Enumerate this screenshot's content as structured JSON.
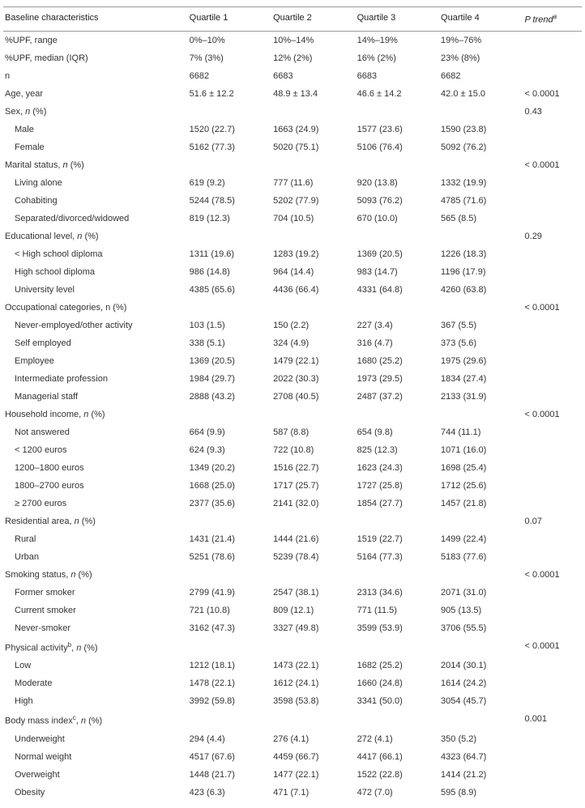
{
  "header": {
    "label": "Baseline characteristics",
    "q1": "Quartile 1",
    "q2": "Quartile 2",
    "q3": "Quartile 3",
    "q4": "Quartile 4",
    "ptrend": "P trend",
    "ptrend_sup": "a"
  },
  "rows": [
    {
      "label": "%UPF, range",
      "q1": "0%–10%",
      "q2": "10%–14%",
      "q3": "14%–19%",
      "q4": "19%–76%",
      "p": "",
      "indent": 0
    },
    {
      "label": "%UPF, median (IQR)",
      "q1": "7% (3%)",
      "q2": "12% (2%)",
      "q3": "16% (2%)",
      "q4": "23% (8%)",
      "p": "",
      "indent": 0
    },
    {
      "label": "n",
      "q1": "6682",
      "q2": "6683",
      "q3": "6683",
      "q4": "6682",
      "p": "",
      "indent": 0
    },
    {
      "label": "Age, year",
      "q1": "51.6 ± 12.2",
      "q2": "48.9 ± 13.4",
      "q3": "46.6 ± 14.2",
      "q4": "42.0 ± 15.0",
      "p": "< 0.0001",
      "indent": 0
    },
    {
      "label": "Sex, n (%)",
      "q1": "",
      "q2": "",
      "q3": "",
      "q4": "",
      "p": "0.43",
      "indent": 0,
      "italicN": true
    },
    {
      "label": "Male",
      "q1": "1520 (22.7)",
      "q2": "1663 (24.9)",
      "q3": "1577 (23.6)",
      "q4": "1590 (23.8)",
      "p": "",
      "indent": 1
    },
    {
      "label": "Female",
      "q1": "5162 (77.3)",
      "q2": "5020 (75.1)",
      "q3": "5106 (76.4)",
      "q4": "5092 (76.2)",
      "p": "",
      "indent": 1
    },
    {
      "label": "Marital status, n (%)",
      "q1": "",
      "q2": "",
      "q3": "",
      "q4": "",
      "p": "< 0.0001",
      "indent": 0,
      "italicN": true
    },
    {
      "label": "Living alone",
      "q1": "619 (9.2)",
      "q2": "777 (11.6)",
      "q3": "920 (13.8)",
      "q4": "1332 (19.9)",
      "p": "",
      "indent": 1
    },
    {
      "label": "Cohabiting",
      "q1": "5244 (78.5)",
      "q2": "5202 (77.9)",
      "q3": "5093 (76.2)",
      "q4": "4785 (71.6)",
      "p": "",
      "indent": 1
    },
    {
      "label": "Separated/divorced/widowed",
      "q1": "819 (12.3)",
      "q2": "704 (10.5)",
      "q3": "670 (10.0)",
      "q4": "565 (8.5)",
      "p": "",
      "indent": 1
    },
    {
      "label": "Educational level, n (%)",
      "q1": "",
      "q2": "",
      "q3": "",
      "q4": "",
      "p": "0.29",
      "indent": 0,
      "italicN": true
    },
    {
      "label": "< High school diploma",
      "q1": "1311 (19.6)",
      "q2": "1283 (19.2)",
      "q3": "1369 (20.5)",
      "q4": "1226 (18.3)",
      "p": "",
      "indent": 1
    },
    {
      "label": "High school diploma",
      "q1": "986 (14.8)",
      "q2": "964 (14.4)",
      "q3": "983 (14.7)",
      "q4": "1196 (17.9)",
      "p": "",
      "indent": 1
    },
    {
      "label": "University level",
      "q1": "4385 (65.6)",
      "q2": "4436 (66.4)",
      "q3": "4331 (64.8)",
      "q4": "4260 (63.8)",
      "p": "",
      "indent": 1
    },
    {
      "label": "Occupational categories, n (%)",
      "q1": "",
      "q2": "",
      "q3": "",
      "q4": "",
      "p": "< 0.0001",
      "indent": 0
    },
    {
      "label": "Never-employed/other activity",
      "q1": "103 (1.5)",
      "q2": "150 (2.2)",
      "q3": "227 (3.4)",
      "q4": "367 (5.5)",
      "p": "",
      "indent": 1
    },
    {
      "label": "Self employed",
      "q1": "338 (5.1)",
      "q2": "324 (4.9)",
      "q3": "316 (4.7)",
      "q4": "373 (5.6)",
      "p": "",
      "indent": 1
    },
    {
      "label": "Employee",
      "q1": "1369 (20.5)",
      "q2": "1479 (22.1)",
      "q3": "1680 (25.2)",
      "q4": "1975 (29.6)",
      "p": "",
      "indent": 1
    },
    {
      "label": "Intermediate profession",
      "q1": "1984 (29.7)",
      "q2": "2022 (30.3)",
      "q3": "1973 (29.5)",
      "q4": "1834 (27.4)",
      "p": "",
      "indent": 1
    },
    {
      "label": "Managerial staff",
      "q1": "2888 (43.2)",
      "q2": "2708 (40.5)",
      "q3": "2487 (37.2)",
      "q4": "2133 (31.9)",
      "p": "",
      "indent": 1
    },
    {
      "label": "Household income, n (%)",
      "q1": "",
      "q2": "",
      "q3": "",
      "q4": "",
      "p": "< 0.0001",
      "indent": 0,
      "italicN": true
    },
    {
      "label": "Not answered",
      "q1": "664 (9.9)",
      "q2": "587 (8.8)",
      "q3": "654 (9.8)",
      "q4": "744 (11.1)",
      "p": "",
      "indent": 1
    },
    {
      "label": "< 1200 euros",
      "q1": "624 (9.3)",
      "q2": "722 (10.8)",
      "q3": "825 (12.3)",
      "q4": "1071 (16.0)",
      "p": "",
      "indent": 1
    },
    {
      "label": "1200–1800 euros",
      "q1": "1349 (20.2)",
      "q2": "1516 (22.7)",
      "q3": "1623 (24.3)",
      "q4": "1698 (25.4)",
      "p": "",
      "indent": 1
    },
    {
      "label": "1800–2700 euros",
      "q1": "1668 (25.0)",
      "q2": "1717 (25.7)",
      "q3": "1727 (25.8)",
      "q4": "1712 (25.6)",
      "p": "",
      "indent": 1
    },
    {
      "label": "≥ 2700 euros",
      "q1": "2377 (35.6)",
      "q2": "2141 (32.0)",
      "q3": "1854 (27.7)",
      "q4": "1457 (21.8)",
      "p": "",
      "indent": 1
    },
    {
      "label": "Residential area, n (%)",
      "q1": "",
      "q2": "",
      "q3": "",
      "q4": "",
      "p": "0.07",
      "indent": 0,
      "italicN": true
    },
    {
      "label": "Rural",
      "q1": "1431 (21.4)",
      "q2": "1444 (21.6)",
      "q3": "1519 (22.7)",
      "q4": "1499 (22.4)",
      "p": "",
      "indent": 1
    },
    {
      "label": "Urban",
      "q1": "5251 (78.6)",
      "q2": "5239 (78.4)",
      "q3": "5164 (77.3)",
      "q4": "5183 (77.6)",
      "p": "",
      "indent": 1
    },
    {
      "label": "Smoking status, n (%)",
      "q1": "",
      "q2": "",
      "q3": "",
      "q4": "",
      "p": "< 0.0001",
      "indent": 0,
      "italicN": true
    },
    {
      "label": "Former smoker",
      "q1": "2799 (41.9)",
      "q2": "2547 (38.1)",
      "q3": "2313 (34.6)",
      "q4": "2071 (31.0)",
      "p": "",
      "indent": 1
    },
    {
      "label": "Current smoker",
      "q1": "721 (10.8)",
      "q2": "809 (12.1)",
      "q3": "771 (11.5)",
      "q4": "905 (13.5)",
      "p": "",
      "indent": 1
    },
    {
      "label": "Never-smoker",
      "q1": "3162 (47.3)",
      "q2": "3327 (49.8)",
      "q3": "3599 (53.9)",
      "q4": "3706 (55.5)",
      "p": "",
      "indent": 1
    },
    {
      "label": "Physical activity, n (%)",
      "sup": "b",
      "q1": "",
      "q2": "",
      "q3": "",
      "q4": "",
      "p": "< 0.0001",
      "indent": 0,
      "italicN": true
    },
    {
      "label": "Low",
      "q1": "1212 (18.1)",
      "q2": "1473 (22.1)",
      "q3": "1682 (25.2)",
      "q4": "2014 (30.1)",
      "p": "",
      "indent": 1
    },
    {
      "label": "Moderate",
      "q1": "1478 (22.1)",
      "q2": "1612 (24.1)",
      "q3": "1660 (24.8)",
      "q4": "1614 (24.2)",
      "p": "",
      "indent": 1
    },
    {
      "label": "High",
      "q1": "3992 (59.8)",
      "q2": "3598 (53.8)",
      "q3": "3341 (50.0)",
      "q4": "3054 (45.7)",
      "p": "",
      "indent": 1
    },
    {
      "label": "Body mass index",
      "sup": "c",
      "labelSuffix": ", n (%)",
      "q1": "",
      "q2": "",
      "q3": "",
      "q4": "",
      "p": "0.001",
      "indent": 0,
      "italicN": true
    },
    {
      "label": "Underweight",
      "q1": "294 (4.4)",
      "q2": "276 (4.1)",
      "q3": "272 (4.1)",
      "q4": "350 (5.2)",
      "p": "",
      "indent": 1
    },
    {
      "label": "Normal weight",
      "q1": "4517 (67.6)",
      "q2": "4459 (66.7)",
      "q3": "4417 (66.1)",
      "q4": "4323 (64.7)",
      "p": "",
      "indent": 1
    },
    {
      "label": "Overweight",
      "q1": "1448 (21.7)",
      "q2": "1477 (22.1)",
      "q3": "1522 (22.8)",
      "q4": "1414 (21.2)",
      "p": "",
      "indent": 1
    },
    {
      "label": "Obesity",
      "q1": "423 (6.3)",
      "q2": "471 (7.1)",
      "q3": "472 (7.0)",
      "q4": "595 (8.9)",
      "p": "",
      "indent": 1
    }
  ]
}
